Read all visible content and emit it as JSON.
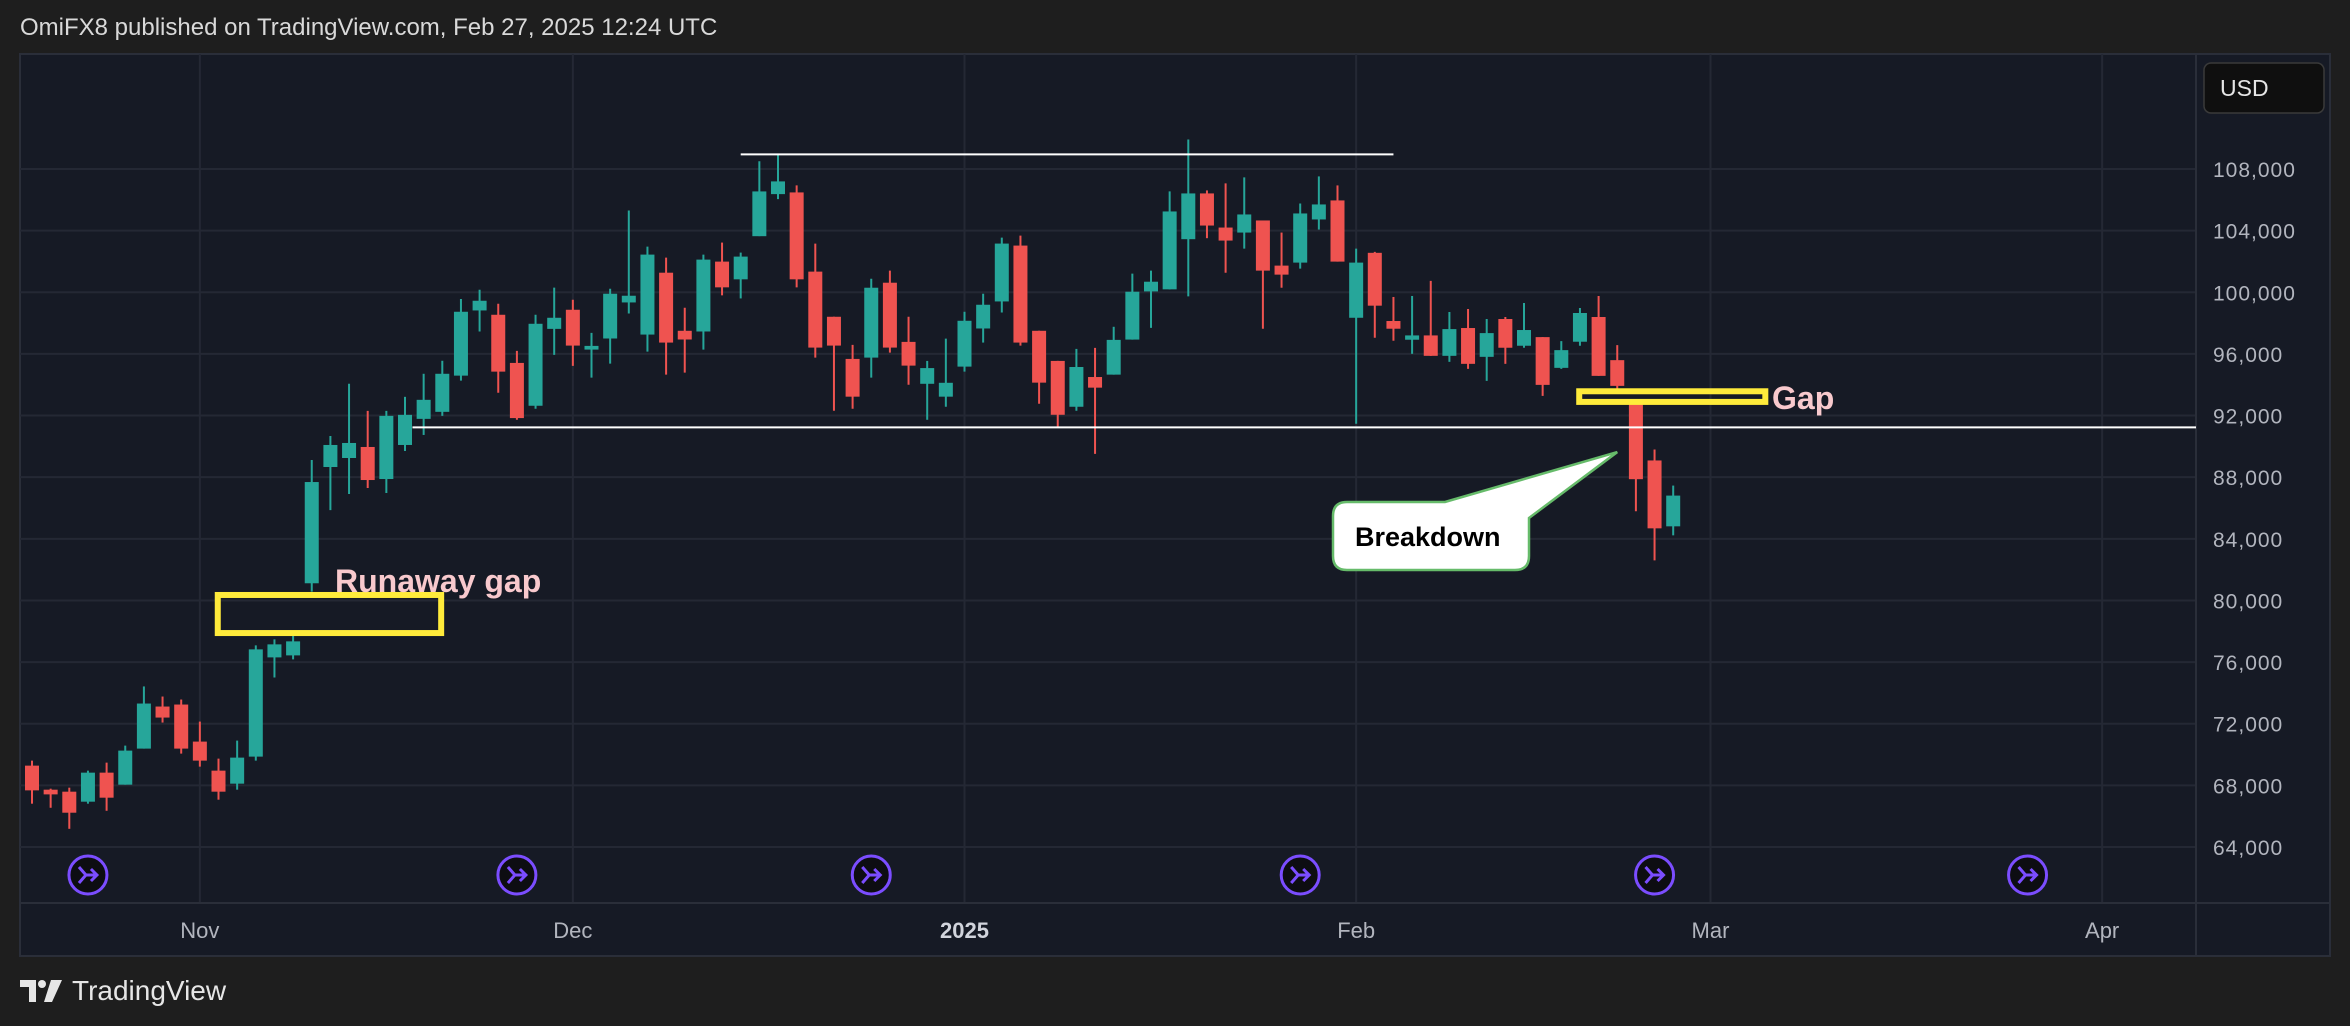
{
  "header": {
    "title": "OmiFX8 published on TradingView.com, Feb 27, 2025 12:24 UTC"
  },
  "footer": {
    "brand": "TradingView"
  },
  "currency_button": "USD",
  "colors": {
    "up": "#26a69a",
    "down": "#ef5350",
    "background": "#161a25",
    "grid": "#242834",
    "annotation_box": "#ffeb3b",
    "annotation_text": "#f8c9cd",
    "callout_border": "#66bb6a",
    "event_icon": "#7b4dff"
  },
  "chart_data": {
    "type": "candlestick",
    "ylim": [
      62000,
      112000
    ],
    "grid": true,
    "y_ticks": [
      {
        "value": 108000,
        "label": "108,000"
      },
      {
        "value": 104000,
        "label": "104,000"
      },
      {
        "value": 100000,
        "label": "100,000"
      },
      {
        "value": 96000,
        "label": "96,000"
      },
      {
        "value": 92000,
        "label": "92,000"
      },
      {
        "value": 88000,
        "label": "88,000"
      },
      {
        "value": 84000,
        "label": "84,000"
      },
      {
        "value": 80000,
        "label": "80,000"
      },
      {
        "value": 76000,
        "label": "76,000"
      },
      {
        "value": 72000,
        "label": "72,000"
      },
      {
        "value": 68000,
        "label": "68,000"
      },
      {
        "value": 64000,
        "label": "64,000"
      }
    ],
    "x_ticks": [
      {
        "bar": 10,
        "label": "Nov",
        "bold": false
      },
      {
        "bar": 30,
        "label": "Dec",
        "bold": false
      },
      {
        "bar": 51,
        "label": "2025",
        "bold": true
      },
      {
        "bar": 72,
        "label": "Feb",
        "bold": false
      },
      {
        "bar": 91,
        "label": "Mar",
        "bold": false
      },
      {
        "bar": 112,
        "label": "Apr",
        "bold": false
      }
    ],
    "ohlc_fields": [
      "open",
      "high",
      "low",
      "close"
    ],
    "candles": [
      [
        69280,
        69605,
        66810,
        67675
      ],
      [
        67720,
        67785,
        66545,
        67415
      ],
      [
        67590,
        67850,
        65180,
        66225
      ],
      [
        66940,
        68955,
        66810,
        68825
      ],
      [
        68825,
        69475,
        66350,
        67200
      ],
      [
        68045,
        70580,
        68045,
        70255
      ],
      [
        70385,
        74420,
        70385,
        73310
      ],
      [
        73115,
        73765,
        72075,
        72400
      ],
      [
        73245,
        73570,
        70060,
        70385
      ],
      [
        70840,
        72140,
        69215,
        69605
      ],
      [
        68955,
        69735,
        67070,
        67590
      ],
      [
        68110,
        70905,
        67720,
        69800
      ],
      [
        69865,
        77085,
        69605,
        76825
      ],
      [
        76305,
        77475,
        75000,
        77150
      ],
      [
        76435,
        77865,
        76175,
        77345
      ],
      [
        81115,
        89115,
        80575,
        87685
      ],
      [
        88660,
        90675,
        85865,
        90090
      ],
      [
        89245,
        94060,
        86905,
        90220
      ],
      [
        89960,
        92305,
        87295,
        87815
      ],
      [
        87880,
        92305,
        86970,
        91980
      ],
      [
        90090,
        93215,
        89700,
        92045
      ],
      [
        91785,
        94710,
        90740,
        93020
      ],
      [
        92240,
        95555,
        91980,
        94710
      ],
      [
        94590,
        99560,
        94265,
        98735
      ],
      [
        98820,
        100165,
        97455,
        99450
      ],
      [
        98540,
        99255,
        93480,
        94850
      ],
      [
        95415,
        96195,
        91725,
        91835
      ],
      [
        92635,
        98540,
        92440,
        97955
      ],
      [
        97625,
        100300,
        95935,
        98345
      ],
      [
        98865,
        99515,
        95220,
        96540
      ],
      [
        96280,
        97365,
        94460,
        96520
      ],
      [
        97000,
        100230,
        95370,
        99905
      ],
      [
        99340,
        105310,
        98625,
        99775
      ],
      [
        97255,
        102965,
        96150,
        102445
      ],
      [
        101270,
        102250,
        94655,
        96735
      ],
      [
        97500,
        98995,
        94785,
        96935
      ],
      [
        97455,
        102445,
        96280,
        102120
      ],
      [
        101990,
        103225,
        99800,
        100320
      ],
      [
        100840,
        102575,
        99600,
        102315
      ],
      [
        103640,
        108500,
        103640,
        106545
      ],
      [
        106370,
        108955,
        106045,
        107195
      ],
      [
        106480,
        106935,
        100320,
        100840
      ],
      [
        101340,
        103160,
        95760,
        96410
      ],
      [
        98410,
        98410,
        92310,
        96540
      ],
      [
        95675,
        96585,
        92440,
        93225
      ],
      [
        95760,
        100880,
        94460,
        100295
      ],
      [
        100620,
        101405,
        96085,
        96410
      ],
      [
        96780,
        98410,
        94000,
        95240
      ],
      [
        94060,
        95545,
        91725,
        95080
      ],
      [
        93225,
        96995,
        92570,
        94125
      ],
      [
        95175,
        98735,
        94850,
        98150
      ],
      [
        97650,
        99905,
        96735,
        99190
      ],
      [
        99405,
        103550,
        98690,
        103160
      ],
      [
        103030,
        103680,
        96540,
        96735
      ],
      [
        97500,
        97500,
        92765,
        94135
      ],
      [
        95545,
        95545,
        91270,
        92050
      ],
      [
        92570,
        96325,
        92310,
        95150
      ],
      [
        94500,
        96390,
        89510,
        93810
      ],
      [
        94655,
        97760,
        94655,
        96910
      ],
      [
        96930,
        101210,
        96930,
        100035
      ],
      [
        100055,
        101405,
        97690,
        100685
      ],
      [
        100190,
        106545,
        100190,
        105245
      ],
      [
        103445,
        109915,
        99730,
        106415
      ],
      [
        106415,
        106610,
        103510,
        104330
      ],
      [
        104200,
        107065,
        101270,
        103355
      ],
      [
        103875,
        107455,
        102835,
        105050
      ],
      [
        104660,
        104660,
        97630,
        101405
      ],
      [
        101730,
        103875,
        100295,
        101145
      ],
      [
        101925,
        105765,
        101535,
        105115
      ],
      [
        104725,
        107520,
        104070,
        105700
      ],
      [
        105960,
        106935,
        101990,
        101990
      ],
      [
        98345,
        102835,
        91465,
        101925
      ],
      [
        102560,
        102625,
        97050,
        99130
      ],
      [
        98135,
        99695,
        96855,
        97635
      ],
      [
        96920,
        99760,
        96005,
        97200
      ],
      [
        97200,
        100740,
        95875,
        95875
      ],
      [
        95875,
        98720,
        95485,
        97610
      ],
      [
        97680,
        98915,
        95030,
        95355
      ],
      [
        95810,
        98265,
        94250,
        97350
      ],
      [
        98265,
        98395,
        95355,
        96400
      ],
      [
        96530,
        99305,
        96400,
        97550
      ],
      [
        97090,
        97090,
        93275,
        93990
      ],
      [
        95095,
        96830,
        95030,
        96245
      ],
      [
        96790,
        98980,
        96530,
        98655
      ],
      [
        98395,
        99760,
        94575,
        94575
      ],
      [
        95595,
        96570,
        93535,
        93925
      ],
      [
        92730,
        92730,
        85785,
        87870
      ],
      [
        89085,
        89800,
        82600,
        84680
      ],
      [
        84810,
        87455,
        84225,
        86805
      ]
    ],
    "event_markers_at_bar": [
      4,
      27,
      46,
      69,
      88,
      108
    ],
    "annotations": {
      "top_line": {
        "from_bar": 39,
        "to_bar": 74,
        "price": 108950
      },
      "support_line": {
        "from_bar": 21.4,
        "to_bar": "right-edge",
        "price": 91230
      },
      "runaway_gap_box": {
        "from_bar": 10.8,
        "to_bar": 23.1,
        "price_low": 77690,
        "price_high": 80550,
        "label": "Runaway gap"
      },
      "gap_box": {
        "from_bar": 83.8,
        "to_bar": 94.1,
        "price_low": 92690,
        "price_high": 93770,
        "label": "Gap"
      },
      "callout": {
        "text": "Breakdown",
        "points_to_bar": 86,
        "points_to_price": 89630
      }
    }
  }
}
